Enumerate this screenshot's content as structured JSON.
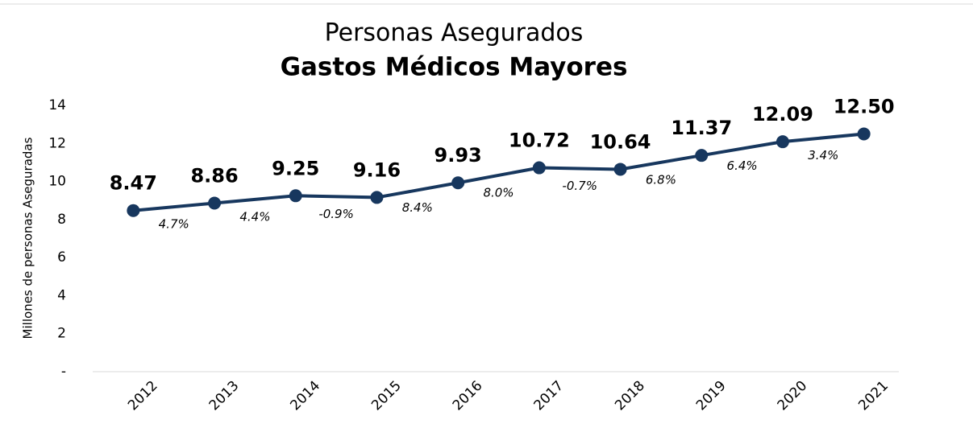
{
  "chart_data": {
    "type": "line",
    "title": "Personas Asegurados",
    "subtitle": "Gastos Médicos Mayores",
    "y_label": "Millones de personas Aseguradas",
    "categories": [
      "2012",
      "2013",
      "2014",
      "2015",
      "2016",
      "2017",
      "2018",
      "2019",
      "2020",
      "2021"
    ],
    "values": [
      8.47,
      8.86,
      9.25,
      9.16,
      9.93,
      10.72,
      10.64,
      11.37,
      12.09,
      12.5
    ],
    "value_labels": [
      "8.47",
      "8.86",
      "9.25",
      "9.16",
      "9.93",
      "10.72",
      "10.64",
      "11.37",
      "12.09",
      "12.50"
    ],
    "annotations": [
      "4.7%",
      "4.4%",
      "-0.9%",
      "8.4%",
      "8.0%",
      "-0.7%",
      "6.8%",
      "6.4%",
      "3.4%"
    ],
    "color": "#17375e",
    "ylim": [
      0,
      14
    ],
    "yticks": [
      {
        "value": 0,
        "label": "-"
      },
      2,
      4,
      6,
      8,
      10,
      12,
      14
    ]
  }
}
